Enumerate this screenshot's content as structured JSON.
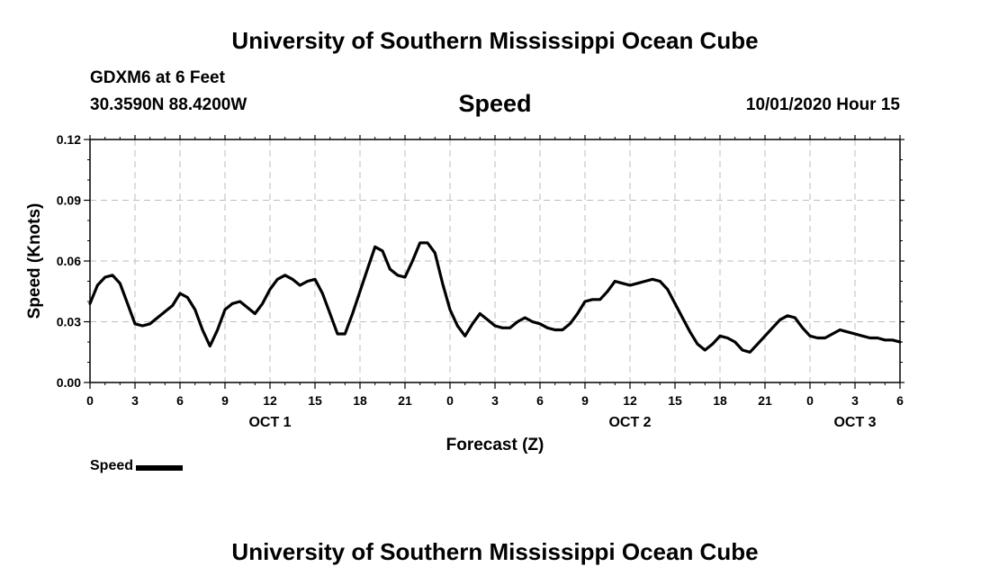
{
  "header": {
    "title_top": "University of Southern Mississippi Ocean Cube",
    "station": "GDXM6 at 6 Feet",
    "coords": "30.3590N 88.4200W",
    "chart_title": "Speed",
    "run_time": "10/01/2020 Hour 15"
  },
  "footer": {
    "title_bottom": "University of Southern Mississippi Ocean Cube"
  },
  "legend": {
    "label": "Speed"
  },
  "chart_data": {
    "type": "line",
    "title": "Speed",
    "xlabel": "Forecast (Z)",
    "ylabel": "Speed (Knots)",
    "xlim": [
      0,
      54
    ],
    "ylim": [
      0,
      0.12
    ],
    "grid": true,
    "x_ticks": [
      0,
      3,
      6,
      9,
      12,
      15,
      18,
      21,
      24,
      27,
      30,
      33,
      36,
      39,
      42,
      45,
      48,
      51,
      54
    ],
    "x_tick_labels": [
      "0",
      "3",
      "6",
      "9",
      "12",
      "15",
      "18",
      "21",
      "0",
      "3",
      "6",
      "9",
      "12",
      "15",
      "18",
      "21",
      "0",
      "3",
      "6"
    ],
    "y_ticks": [
      0,
      0.03,
      0.06,
      0.09,
      0.12
    ],
    "y_tick_labels": [
      "0.00",
      "0.03",
      "0.06",
      "0.09",
      "0.12"
    ],
    "day_labels": [
      {
        "x": 12,
        "label": "OCT 1"
      },
      {
        "x": 36,
        "label": "OCT 2"
      },
      {
        "x": 51,
        "label": "OCT 3"
      }
    ],
    "series": [
      {
        "name": "Speed",
        "color": "#000000",
        "x": [
          0,
          0.5,
          1,
          1.5,
          2,
          2.5,
          3,
          3.5,
          4,
          4.5,
          5,
          5.5,
          6,
          6.5,
          7,
          7.5,
          8,
          8.5,
          9,
          9.5,
          10,
          10.5,
          11,
          11.5,
          12,
          12.5,
          13,
          13.5,
          14,
          14.5,
          15,
          15.5,
          16,
          16.5,
          17,
          17.5,
          18,
          18.5,
          19,
          19.5,
          20,
          20.5,
          21,
          21.5,
          22,
          22.5,
          23,
          23.5,
          24,
          24.5,
          25,
          25.5,
          26,
          26.5,
          27,
          27.5,
          28,
          28.5,
          29,
          29.5,
          30,
          30.5,
          31,
          31.5,
          32,
          32.5,
          33,
          33.5,
          34,
          34.5,
          35,
          35.5,
          36,
          36.5,
          37,
          37.5,
          38,
          38.5,
          39,
          39.5,
          40,
          40.5,
          41,
          41.5,
          42,
          42.5,
          43,
          43.5,
          44,
          44.5,
          45,
          45.5,
          46,
          46.5,
          47,
          47.5,
          48,
          48.5,
          49,
          49.5,
          50,
          50.5,
          51,
          51.5,
          52,
          52.5,
          53,
          53.5,
          54
        ],
        "values": [
          0.039,
          0.048,
          0.052,
          0.053,
          0.049,
          0.039,
          0.029,
          0.028,
          0.029,
          0.032,
          0.035,
          0.038,
          0.044,
          0.042,
          0.036,
          0.026,
          0.018,
          0.026,
          0.036,
          0.039,
          0.04,
          0.037,
          0.034,
          0.039,
          0.046,
          0.051,
          0.053,
          0.051,
          0.048,
          0.05,
          0.051,
          0.044,
          0.034,
          0.024,
          0.024,
          0.034,
          0.045,
          0.056,
          0.067,
          0.065,
          0.056,
          0.053,
          0.052,
          0.06,
          0.069,
          0.069,
          0.064,
          0.049,
          0.036,
          0.028,
          0.023,
          0.029,
          0.034,
          0.031,
          0.028,
          0.027,
          0.027,
          0.03,
          0.032,
          0.03,
          0.029,
          0.027,
          0.026,
          0.026,
          0.029,
          0.034,
          0.04,
          0.041,
          0.041,
          0.045,
          0.05,
          0.049,
          0.048,
          0.049,
          0.05,
          0.051,
          0.05,
          0.046,
          0.039,
          0.032,
          0.025,
          0.019,
          0.016,
          0.019,
          0.023,
          0.022,
          0.02,
          0.016,
          0.015,
          0.019,
          0.023,
          0.027,
          0.031,
          0.033,
          0.032,
          0.027,
          0.023,
          0.022,
          0.022,
          0.024,
          0.026,
          0.025,
          0.024,
          0.023,
          0.022,
          0.022,
          0.021,
          0.021,
          0.02
        ]
      }
    ]
  }
}
